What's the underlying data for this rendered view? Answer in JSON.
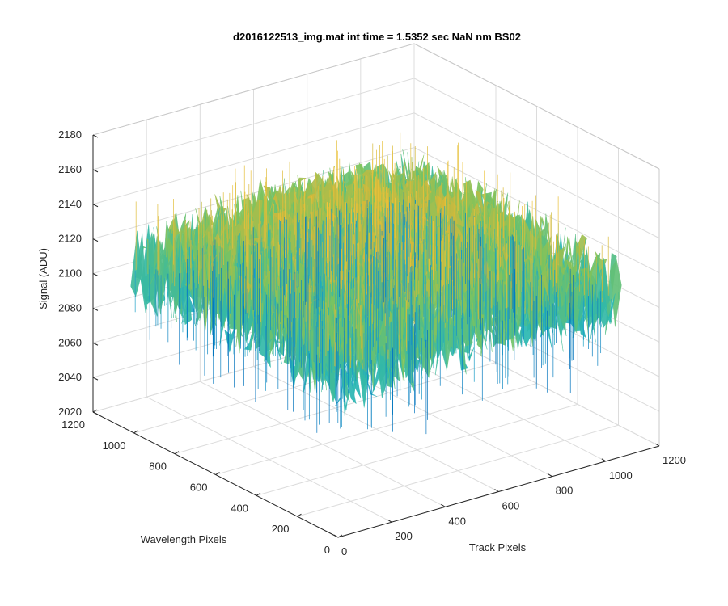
{
  "chart_data": {
    "type": "surface",
    "title": "d2016122513_img.mat int time = 1.5352 sec  NaN nm BS02",
    "xlabel": "Track Pixels",
    "ylabel": "Wavelength Pixels",
    "zlabel": "Signal (ADU)",
    "xlim": [
      0,
      1200
    ],
    "ylim": [
      0,
      1200
    ],
    "zlim": [
      2020,
      2180
    ],
    "xticks": [
      "0",
      "200",
      "400",
      "600",
      "800",
      "1000",
      "1200"
    ],
    "yticks": [
      "0",
      "200",
      "400",
      "600",
      "800",
      "1000",
      "1200"
    ],
    "zticks": [
      "2020",
      "2040",
      "2060",
      "2080",
      "2100",
      "2120",
      "2140",
      "2160",
      "2180"
    ],
    "grid": true,
    "colormap": [
      "#0072bd",
      "#1fa0c8",
      "#2ab8b0",
      "#7cc35e",
      "#d4b83a",
      "#f2c53a"
    ],
    "surface_summary": {
      "center_mean": 2125,
      "edge_mean": 2098,
      "noise_amplitude": 25,
      "min_signal": 2020,
      "max_signal": 2170
    }
  }
}
